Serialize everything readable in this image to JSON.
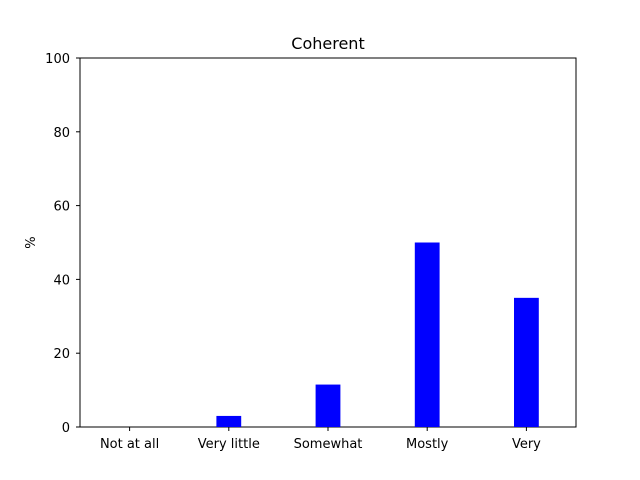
{
  "chart_data": {
    "type": "bar",
    "title": "Coherent",
    "xlabel": "",
    "ylabel": "%",
    "categories": [
      "Not at all",
      "Very little",
      "Somewhat",
      "Mostly",
      "Very"
    ],
    "values": [
      0,
      3,
      11.5,
      50,
      35
    ],
    "ylim": [
      0,
      100
    ],
    "yticks": [
      0,
      20,
      40,
      60,
      80,
      100
    ],
    "grid": false,
    "colors": {
      "bar": "#0000ff",
      "axis": "#000000",
      "background": "#ffffff"
    }
  }
}
